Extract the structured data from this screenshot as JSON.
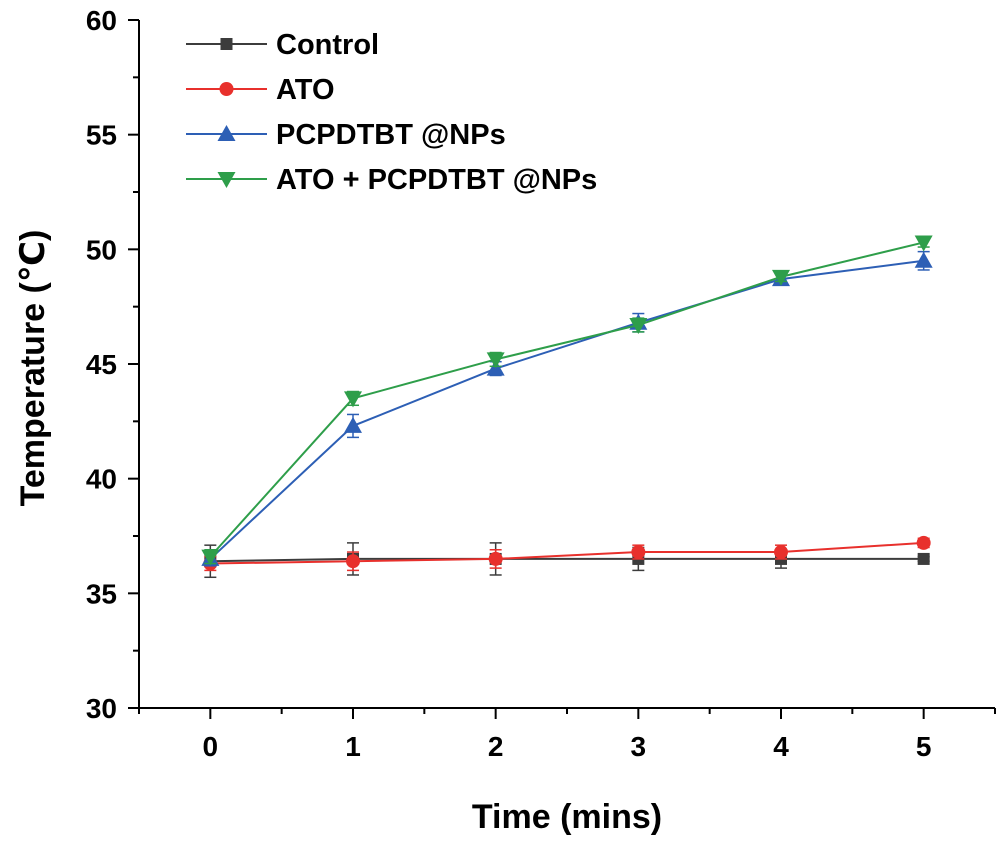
{
  "chart_data": {
    "type": "line",
    "title": "",
    "xlabel": "Time (mins)",
    "ylabel": "Temperature (℃)",
    "x": [
      0,
      1,
      2,
      3,
      4,
      5
    ],
    "xlim": [
      -0.5,
      5.5
    ],
    "ylim": [
      30,
      60
    ],
    "xticks": [
      0,
      1,
      2,
      3,
      4,
      5
    ],
    "yticks": [
      30,
      35,
      40,
      45,
      50,
      55,
      60
    ],
    "grid": false,
    "legend_position": "top-left",
    "series": [
      {
        "name": "Control",
        "color": "#3c3c3c",
        "marker": "square",
        "values": [
          36.4,
          36.5,
          36.5,
          36.5,
          36.5,
          36.5
        ],
        "errors": [
          0.7,
          0.7,
          0.7,
          0.5,
          0.4,
          0.1
        ]
      },
      {
        "name": "ATO",
        "color": "#e8302c",
        "marker": "circle",
        "values": [
          36.3,
          36.4,
          36.5,
          36.8,
          36.8,
          37.2
        ],
        "errors": [
          0.3,
          0.4,
          0.4,
          0.3,
          0.3,
          0.2
        ]
      },
      {
        "name": "PCPDTBT @NPs",
        "color": "#2d5fb5",
        "marker": "triangle-up",
        "values": [
          36.5,
          42.3,
          44.8,
          46.8,
          48.7,
          49.5
        ],
        "errors": [
          0.3,
          0.5,
          0.3,
          0.4,
          0.2,
          0.4
        ]
      },
      {
        "name": "ATO + PCPDTBT @NPs",
        "color": "#2e9e4a",
        "marker": "triangle-down",
        "values": [
          36.6,
          43.5,
          45.2,
          46.7,
          48.8,
          50.3
        ],
        "errors": [
          0.3,
          0.3,
          0.3,
          0.3,
          0.2,
          0.2
        ]
      }
    ]
  }
}
